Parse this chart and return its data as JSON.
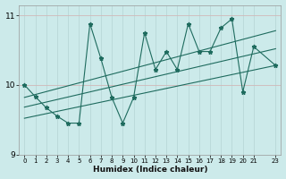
{
  "xlabel": "Humidex (Indice chaleur)",
  "ylabel": "",
  "xlim": [
    -0.5,
    23.5
  ],
  "ylim": [
    9,
    11.15
  ],
  "yticks": [
    9,
    10,
    11
  ],
  "xticks": [
    0,
    1,
    2,
    3,
    4,
    5,
    6,
    7,
    8,
    9,
    10,
    11,
    12,
    13,
    14,
    15,
    16,
    17,
    18,
    19,
    20,
    21,
    23
  ],
  "bg_color": "#cceaea",
  "grid_color": "#b8d8d8",
  "line_color": "#1e6b5e",
  "data_x": [
    0,
    1,
    2,
    3,
    4,
    5,
    6,
    7,
    8,
    9,
    10,
    11,
    12,
    13,
    14,
    15,
    16,
    17,
    18,
    19,
    20,
    21,
    23
  ],
  "data_y": [
    10.0,
    9.83,
    9.67,
    9.55,
    9.45,
    9.45,
    10.88,
    10.38,
    9.82,
    9.45,
    9.82,
    10.75,
    10.22,
    10.48,
    10.22,
    10.88,
    10.48,
    10.48,
    10.82,
    10.95,
    9.9,
    10.55,
    10.28
  ],
  "line1_x": [
    0,
    23
  ],
  "line1_y": [
    9.68,
    10.52
  ],
  "line2_x": [
    0,
    23
  ],
  "line2_y": [
    9.82,
    10.78
  ],
  "line3_x": [
    0,
    23
  ],
  "line3_y": [
    9.52,
    10.28
  ]
}
